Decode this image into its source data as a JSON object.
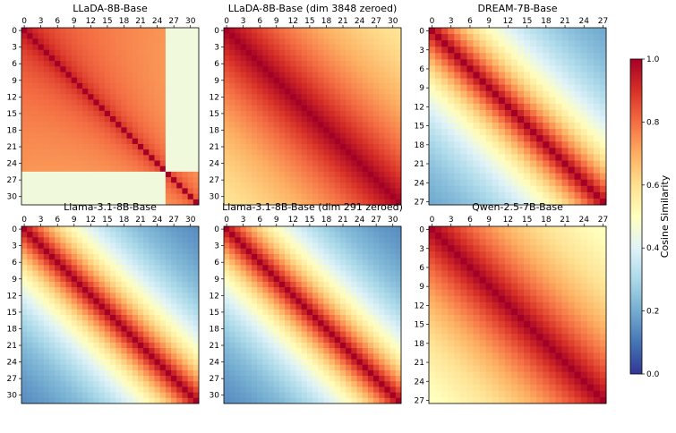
{
  "chart_data": {
    "type": "heatmap",
    "colormap": "RdYlBu_r",
    "colorbar": {
      "label": "Cosine Similarity",
      "range": [
        0.0,
        1.0
      ],
      "ticks": [
        "0.0",
        "0.2",
        "0.4",
        "0.6",
        "0.8",
        "1.0"
      ]
    },
    "panels": [
      {
        "title": "LLaDA-8B-Base",
        "n_layers": 32,
        "tick_step": 3,
        "pattern": "block",
        "similarity_model": {
          "near_scale": 0.55,
          "far_scale": 0.08,
          "min": 0.45,
          "last_block_start": 26,
          "last_block_value": 0.45
        }
      },
      {
        "title": "LLaDA-8B-Base (dim 3848 zeroed)",
        "n_layers": 32,
        "tick_step": 3,
        "pattern": "diagonal",
        "similarity_model": {
          "diag_decay": 0.045,
          "floor": 0.45
        }
      },
      {
        "title": "DREAM-7B-Base",
        "n_layers": 28,
        "tick_step": 3,
        "pattern": "diagonal",
        "similarity_model": {
          "diag_decay": 0.09,
          "floor": 0.12
        }
      },
      {
        "title": "Llama-3.1-8B-Base",
        "n_layers": 32,
        "tick_step": 3,
        "pattern": "diagonal",
        "similarity_model": {
          "diag_decay": 0.085,
          "floor": 0.08
        }
      },
      {
        "title": "Llama-3.1-8B-Base (dim 291 zeroed)",
        "n_layers": 32,
        "tick_step": 3,
        "pattern": "diagonal",
        "similarity_model": {
          "diag_decay": 0.085,
          "floor": 0.08
        }
      },
      {
        "title": "Qwen-2.5-7B-Base",
        "n_layers": 28,
        "tick_step": 3,
        "pattern": "diagonal",
        "similarity_model": {
          "diag_decay": 0.055,
          "floor": 0.35
        }
      }
    ]
  }
}
